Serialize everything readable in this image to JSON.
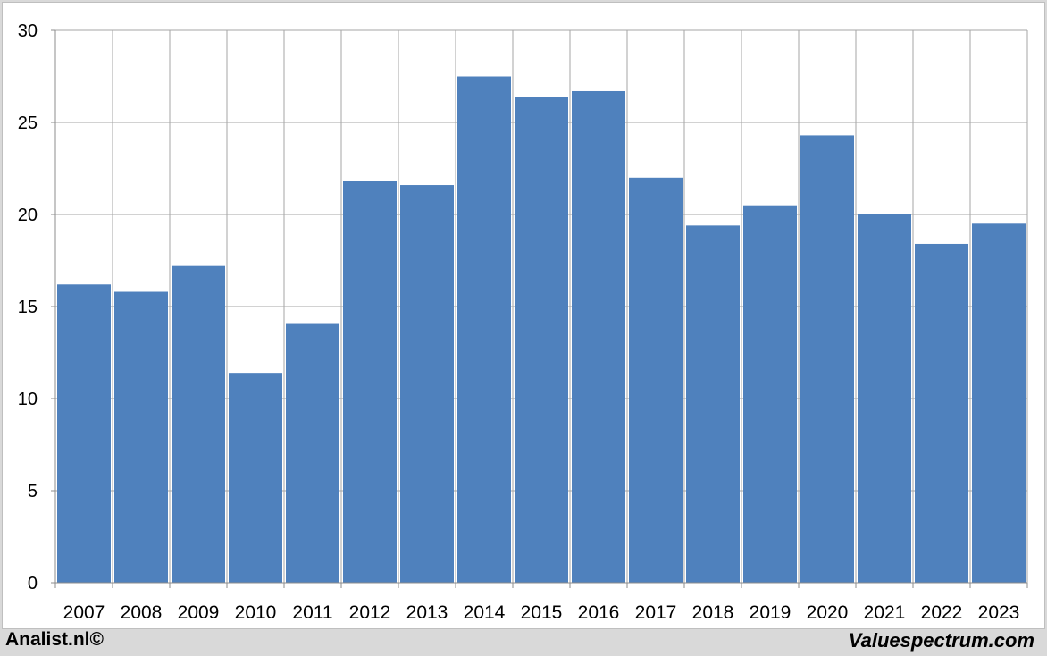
{
  "chart_data": {
    "type": "bar",
    "categories": [
      "2007",
      "2008",
      "2009",
      "2010",
      "2011",
      "2012",
      "2013",
      "2014",
      "2015",
      "2016",
      "2017",
      "2018",
      "2019",
      "2020",
      "2021",
      "2022",
      "2023"
    ],
    "values": [
      16.2,
      15.8,
      17.2,
      11.4,
      14.1,
      21.8,
      21.6,
      27.5,
      26.4,
      26.7,
      22.0,
      19.4,
      20.5,
      24.3,
      20.0,
      18.4,
      19.5
    ],
    "ylim": [
      0,
      30
    ],
    "yticks": [
      0,
      5,
      10,
      15,
      20,
      25,
      30
    ],
    "grid": true,
    "bar_color": "#4f81bd",
    "grid_color": "#a6a6a6"
  },
  "footer": {
    "left": "Analist.nl©",
    "right": "Valuespectrum.com"
  }
}
